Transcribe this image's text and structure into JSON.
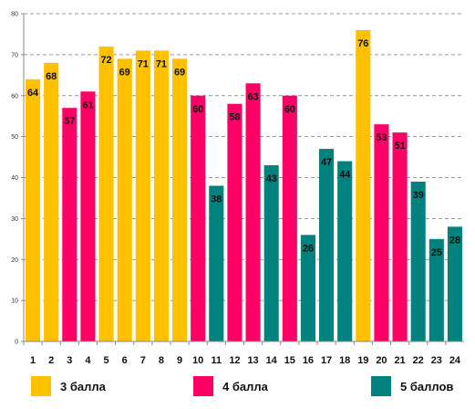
{
  "chart_data": {
    "type": "bar",
    "categories": [
      "1",
      "2",
      "3",
      "4",
      "5",
      "6",
      "7",
      "8",
      "9",
      "10",
      "11",
      "12",
      "13",
      "14",
      "15",
      "16",
      "17",
      "18",
      "19",
      "20",
      "21",
      "22",
      "23",
      "24"
    ],
    "values": [
      64,
      68,
      57,
      61,
      72,
      69,
      71,
      71,
      69,
      60,
      38,
      58,
      63,
      43,
      60,
      26,
      47,
      44,
      76,
      53,
      51,
      39,
      25,
      28
    ],
    "groups": [
      "3 балла",
      "3 балла",
      "4 балла",
      "4 балла",
      "3 балла",
      "3 балла",
      "3 балла",
      "3 балла",
      "3 балла",
      "4 балла",
      "5 баллов",
      "4 балла",
      "4 балла",
      "5 баллов",
      "4 балла",
      "5 баллов",
      "5 баллов",
      "5 баллов",
      "3 балла",
      "4 балла",
      "4 балла",
      "5 баллов",
      "5 баллов",
      "5 баллов"
    ],
    "legend": [
      {
        "name": "3 балла",
        "color": "#FFC000"
      },
      {
        "name": "4 балла",
        "color": "#FF0066"
      },
      {
        "name": "5 баллов",
        "color": "#00827F"
      }
    ],
    "ylim": [
      0,
      80
    ],
    "yticks": [
      0,
      10,
      20,
      30,
      40,
      50,
      60,
      70,
      80
    ],
    "grid": true,
    "legend_position": "bottom"
  }
}
